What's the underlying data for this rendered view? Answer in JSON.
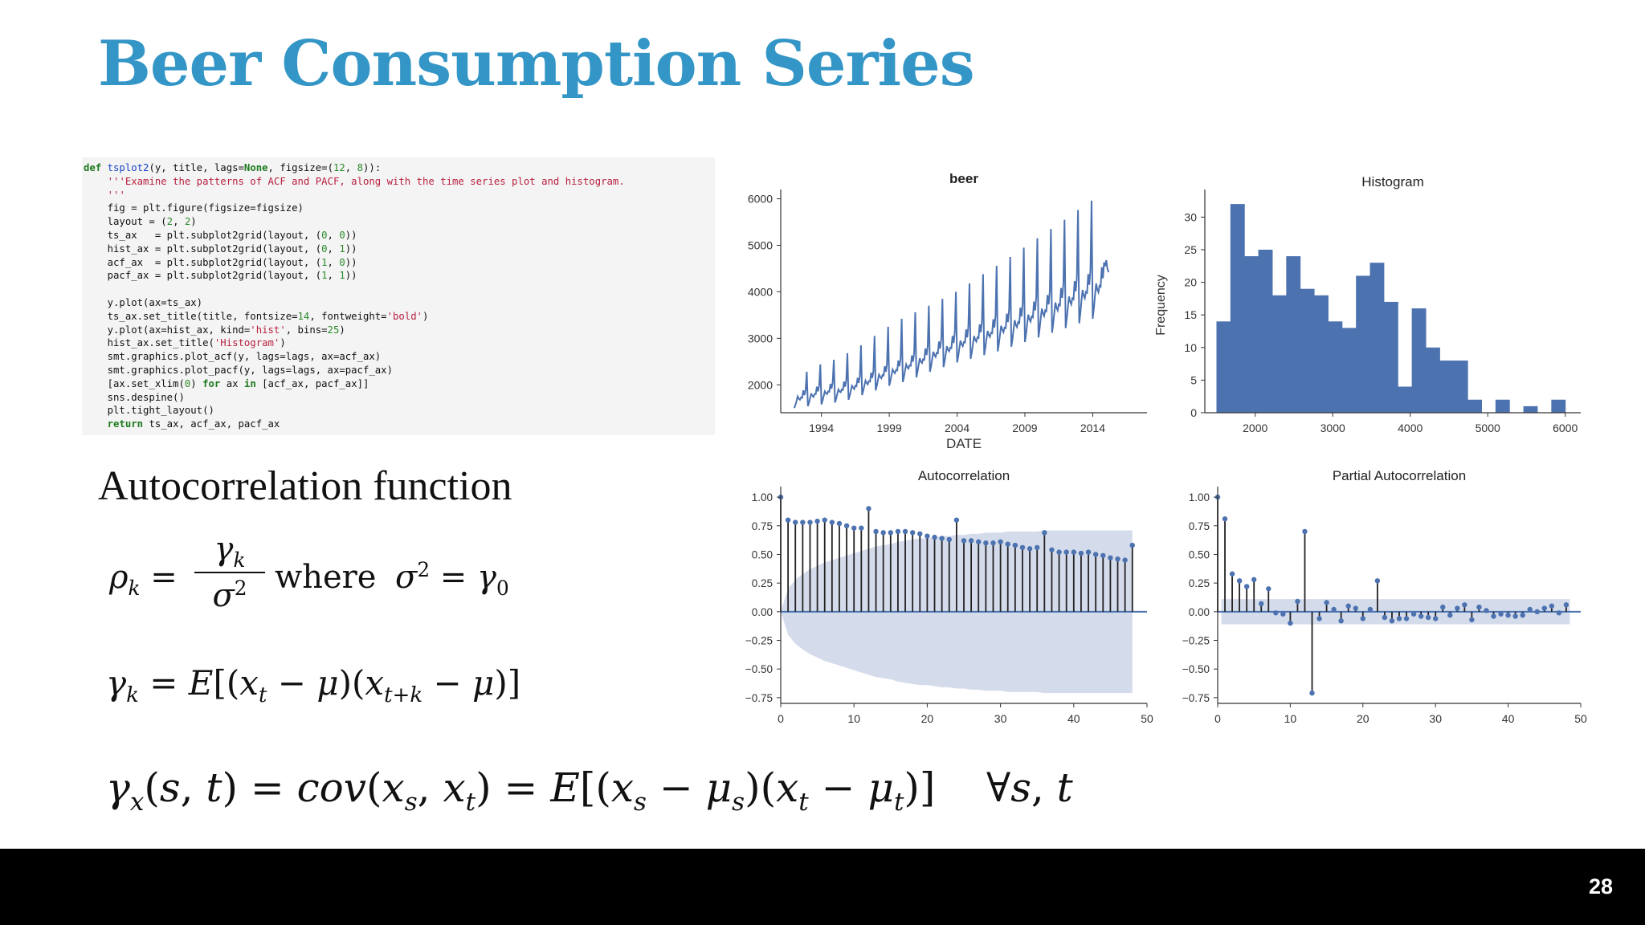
{
  "slide": {
    "title": "Beer Consumption Series",
    "page_number": "28"
  },
  "code": {
    "lines": [
      "def tsplot2(y, title, lags=None, figsize=(12, 8)):",
      "    '''Examine the patterns of ACF and PACF, along with the time series plot and histogram.",
      "    '''",
      "    fig = plt.figure(figsize=figsize)",
      "    layout = (2, 2)",
      "    ts_ax   = plt.subplot2grid(layout, (0, 0))",
      "    hist_ax = plt.subplot2grid(layout, (0, 1))",
      "    acf_ax  = plt.subplot2grid(layout, (1, 0))",
      "    pacf_ax = plt.subplot2grid(layout, (1, 1))",
      "",
      "    y.plot(ax=ts_ax)",
      "    ts_ax.set_title(title, fontsize=14, fontweight='bold')",
      "    y.plot(ax=hist_ax, kind='hist', bins=25)",
      "    hist_ax.set_title('Histogram')",
      "    smt.graphics.plot_acf(y, lags=lags, ax=acf_ax)",
      "    smt.graphics.plot_pacf(y, lags=lags, ax=pacf_ax)",
      "    [ax.set_xlim(0) for ax in [acf_ax, pacf_ax]]",
      "    sns.despine()",
      "    plt.tight_layout()",
      "    return ts_ax, acf_ax, pacf_ax"
    ]
  },
  "text": {
    "acf_heading": "Autocorrelation function",
    "where": "where"
  },
  "colors": {
    "title": "#3496c6",
    "series": "#4c72b0",
    "confidence_band": "#d4dbeb",
    "bottom_bar": "#000000"
  },
  "chart_data": [
    {
      "type": "line",
      "title": "beer",
      "xlabel": "DATE",
      "ylabel": "",
      "xticks": [
        "1994",
        "1999",
        "2004",
        "2009",
        "2014"
      ],
      "xlim": [
        1991,
        2018
      ],
      "ylim": [
        1400,
        6200
      ],
      "yticks": [
        2000,
        3000,
        4000,
        5000,
        6000
      ],
      "series": [
        {
          "x_start": 1992.0,
          "x_step": 0.0833333,
          "values": [
            1500,
            1570,
            1650,
            1750,
            1700,
            1680,
            1730,
            1720,
            1880,
            1780,
            1900,
            2280,
            1540,
            1620,
            1720,
            1800,
            1770,
            1740,
            1800,
            1800,
            1960,
            1860,
            1990,
            2440,
            1580,
            1660,
            1760,
            1860,
            1820,
            1800,
            1860,
            1850,
            2020,
            1920,
            2060,
            2540,
            1620,
            1700,
            1800,
            1900,
            1860,
            1840,
            1900,
            1890,
            2070,
            1960,
            2100,
            2680,
            1680,
            1770,
            1880,
            1980,
            1940,
            1910,
            1980,
            1970,
            2150,
            2040,
            2190,
            2850,
            1780,
            1870,
            1980,
            2090,
            2040,
            2010,
            2080,
            2070,
            2260,
            2150,
            2300,
            3050,
            1880,
            1980,
            2100,
            2220,
            2170,
            2140,
            2210,
            2200,
            2400,
            2280,
            2450,
            3250,
            1980,
            2080,
            2210,
            2330,
            2280,
            2250,
            2320,
            2310,
            2520,
            2400,
            2570,
            3420,
            2060,
            2170,
            2310,
            2440,
            2380,
            2350,
            2420,
            2410,
            2630,
            2500,
            2690,
            3560,
            2160,
            2280,
            2430,
            2570,
            2500,
            2470,
            2550,
            2540,
            2780,
            2640,
            2840,
            3700,
            2280,
            2400,
            2560,
            2710,
            2640,
            2600,
            2690,
            2680,
            2930,
            2780,
            2990,
            3850,
            2380,
            2510,
            2670,
            2830,
            2750,
            2720,
            2800,
            2790,
            3050,
            2900,
            3120,
            4000,
            2480,
            2610,
            2790,
            2950,
            2870,
            2830,
            2920,
            2910,
            3190,
            3020,
            3260,
            4180,
            2560,
            2700,
            2880,
            3050,
            2970,
            2930,
            3020,
            3010,
            3300,
            3130,
            3370,
            4380,
            2640,
            2790,
            2980,
            3160,
            3070,
            3030,
            3120,
            3110,
            3410,
            3230,
            3480,
            4560,
            2720,
            2880,
            3080,
            3270,
            3180,
            3130,
            3230,
            3220,
            3530,
            3350,
            3610,
            4750,
            2820,
            2980,
            3190,
            3390,
            3290,
            3240,
            3350,
            3330,
            3660,
            3470,
            3740,
            4950,
            2920,
            3090,
            3310,
            3510,
            3410,
            3360,
            3470,
            3450,
            3790,
            3600,
            3880,
            5150,
            3020,
            3200,
            3430,
            3640,
            3540,
            3480,
            3600,
            3580,
            3930,
            3730,
            4020,
            5350,
            3120,
            3310,
            3550,
            3770,
            3660,
            3600,
            3730,
            3710,
            4080,
            3870,
            4170,
            5550,
            3220,
            3420,
            3670,
            3900,
            3790,
            3730,
            3860,
            3840,
            4230,
            4010,
            4320,
            5760,
            3320,
            3530,
            3800,
            4040,
            3920,
            3860,
            4000,
            3980,
            4380,
            4150,
            4480,
            5960,
            3420,
            3650,
            3930,
            4180,
            4050,
            3990,
            4130,
            4110,
            4530,
            4290,
            4630,
            4550,
            4680,
            4500,
            4420
          ]
        }
      ]
    },
    {
      "type": "bar",
      "title": "Histogram",
      "xlabel": "",
      "ylabel": "Frequency",
      "xticks": [
        2000,
        3000,
        4000,
        5000,
        6000
      ],
      "xlim": [
        1350,
        6200
      ],
      "ylim": [
        0,
        33
      ],
      "yticks": [
        0,
        5,
        10,
        15,
        20,
        25,
        30
      ],
      "bin_start": 1500,
      "bin_width": 180,
      "values": [
        14,
        32,
        24,
        25,
        18,
        24,
        19,
        18,
        14,
        13,
        21,
        23,
        17,
        4,
        16,
        10,
        8,
        8,
        2,
        0,
        2,
        0,
        1,
        0,
        2
      ]
    },
    {
      "type": "bar",
      "title": "Autocorrelation",
      "xlabel": "",
      "ylabel": "",
      "xticks": [
        0,
        10,
        20,
        30,
        40,
        50
      ],
      "xlim": [
        0,
        50
      ],
      "ylim": [
        -0.8,
        1.05
      ],
      "yticks": [
        1.0,
        0.75,
        0.5,
        0.25,
        0.0,
        -0.25,
        -0.5,
        -0.75
      ],
      "ytick_labels": [
        "1.00",
        "0.75",
        "0.50",
        "0.25",
        "0.00",
        "−0.25",
        "−0.50",
        "−0.75"
      ],
      "lags": [
        0,
        1,
        2,
        3,
        4,
        5,
        6,
        7,
        8,
        9,
        10,
        11,
        12,
        13,
        14,
        15,
        16,
        17,
        18,
        19,
        20,
        21,
        22,
        23,
        24,
        25,
        26,
        27,
        28,
        29,
        30,
        31,
        32,
        33,
        34,
        35,
        36,
        37,
        38,
        39,
        40,
        41,
        42,
        43,
        44,
        45,
        46,
        47,
        48
      ],
      "values": [
        1.0,
        0.8,
        0.78,
        0.78,
        0.78,
        0.79,
        0.8,
        0.78,
        0.77,
        0.75,
        0.73,
        0.73,
        0.9,
        0.7,
        0.69,
        0.69,
        0.7,
        0.7,
        0.69,
        0.68,
        0.66,
        0.65,
        0.64,
        0.63,
        0.8,
        0.62,
        0.62,
        0.61,
        0.6,
        0.6,
        0.61,
        0.59,
        0.58,
        0.56,
        0.55,
        0.56,
        0.69,
        0.54,
        0.52,
        0.52,
        0.52,
        0.51,
        0.52,
        0.5,
        0.49,
        0.47,
        0.46,
        0.45,
        0.58
      ],
      "confidence_upper": [
        0.0,
        0.2,
        0.28,
        0.33,
        0.37,
        0.4,
        0.43,
        0.45,
        0.47,
        0.49,
        0.51,
        0.53,
        0.55,
        0.57,
        0.58,
        0.59,
        0.61,
        0.62,
        0.63,
        0.64,
        0.64,
        0.65,
        0.66,
        0.66,
        0.67,
        0.67,
        0.68,
        0.68,
        0.69,
        0.69,
        0.69,
        0.7,
        0.7,
        0.7,
        0.7,
        0.7,
        0.71,
        0.71,
        0.71,
        0.71,
        0.71,
        0.71,
        0.71,
        0.71,
        0.71,
        0.71,
        0.71,
        0.71,
        0.71
      ]
    },
    {
      "type": "bar",
      "title": "Partial Autocorrelation",
      "xlabel": "",
      "ylabel": "",
      "xticks": [
        0,
        10,
        20,
        30,
        40,
        50
      ],
      "xlim": [
        0,
        50
      ],
      "ylim": [
        -0.8,
        1.05
      ],
      "yticks": [
        1.0,
        0.75,
        0.5,
        0.25,
        0.0,
        -0.25,
        -0.5,
        -0.75
      ],
      "ytick_labels": [
        "1.00",
        "0.75",
        "0.50",
        "0.25",
        "0.00",
        "−0.25",
        "−0.50",
        "−0.75"
      ],
      "lags": [
        0,
        1,
        2,
        3,
        4,
        5,
        6,
        7,
        8,
        9,
        10,
        11,
        12,
        13,
        14,
        15,
        16,
        17,
        18,
        19,
        20,
        21,
        22,
        23,
        24,
        25,
        26,
        27,
        28,
        29,
        30,
        31,
        32,
        33,
        34,
        35,
        36,
        37,
        38,
        39,
        40,
        41,
        42,
        43,
        44,
        45,
        46,
        47,
        48
      ],
      "values": [
        1.0,
        0.81,
        0.33,
        0.27,
        0.22,
        0.28,
        0.07,
        0.2,
        -0.01,
        -0.02,
        -0.1,
        0.09,
        0.7,
        -0.71,
        -0.06,
        0.08,
        0.02,
        -0.08,
        0.05,
        0.03,
        -0.06,
        0.02,
        0.27,
        -0.05,
        -0.08,
        -0.06,
        -0.06,
        -0.02,
        -0.04,
        -0.05,
        -0.06,
        0.04,
        -0.03,
        0.03,
        0.06,
        -0.07,
        0.04,
        0.01,
        -0.04,
        -0.02,
        -0.03,
        -0.04,
        -0.03,
        0.02,
        0.0,
        0.03,
        0.05,
        -0.01,
        0.06
      ],
      "confidence_band": 0.11
    }
  ]
}
